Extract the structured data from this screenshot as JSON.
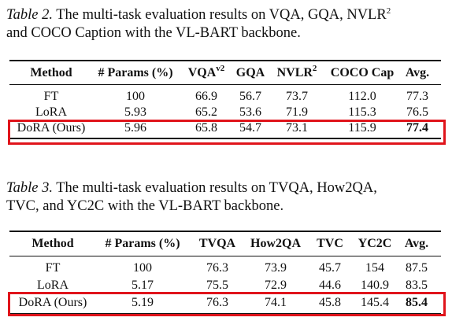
{
  "tables": [
    {
      "caption": {
        "label": "Table 2.",
        "lines": [
          "The multi-task evaluation results on VQA, GQA, NVLR",
          "and COCO Caption with the VL-BART backbone."
        ],
        "sup": "2"
      },
      "headers": [
        "Method",
        "# Params (%)",
        {
          "text": "VQA",
          "sup": "v2"
        },
        "GQA",
        {
          "text": "NVLR",
          "sup": "2"
        },
        "COCO Cap",
        "Avg."
      ],
      "rows": [
        [
          "FT",
          "100",
          "66.9",
          "56.7",
          "73.7",
          "112.0",
          "77.3"
        ],
        [
          "LoRA",
          "5.93",
          "65.2",
          "53.6",
          "71.9",
          "115.3",
          "76.5"
        ],
        [
          "DoRA (Ours)",
          "5.96",
          "65.8",
          "54.7",
          "73.1",
          "115.9",
          "77.4"
        ]
      ]
    },
    {
      "caption": {
        "label": "Table 3.",
        "lines": [
          "The multi-task evaluation results on TVQA, How2QA,",
          "TVC, and YC2C with the VL-BART backbone."
        ]
      },
      "headers": [
        "Method",
        "# Params (%)",
        "TVQA",
        "How2QA",
        "TVC",
        "YC2C",
        "Avg."
      ],
      "rows": [
        [
          "FT",
          "100",
          "76.3",
          "73.9",
          "45.7",
          "154",
          "87.5"
        ],
        [
          "LoRA",
          "5.17",
          "75.5",
          "72.9",
          "44.6",
          "140.9",
          "83.5"
        ],
        [
          "DoRA (Ours)",
          "5.19",
          "76.3",
          "74.1",
          "45.8",
          "145.4",
          "85.4"
        ]
      ]
    }
  ]
}
